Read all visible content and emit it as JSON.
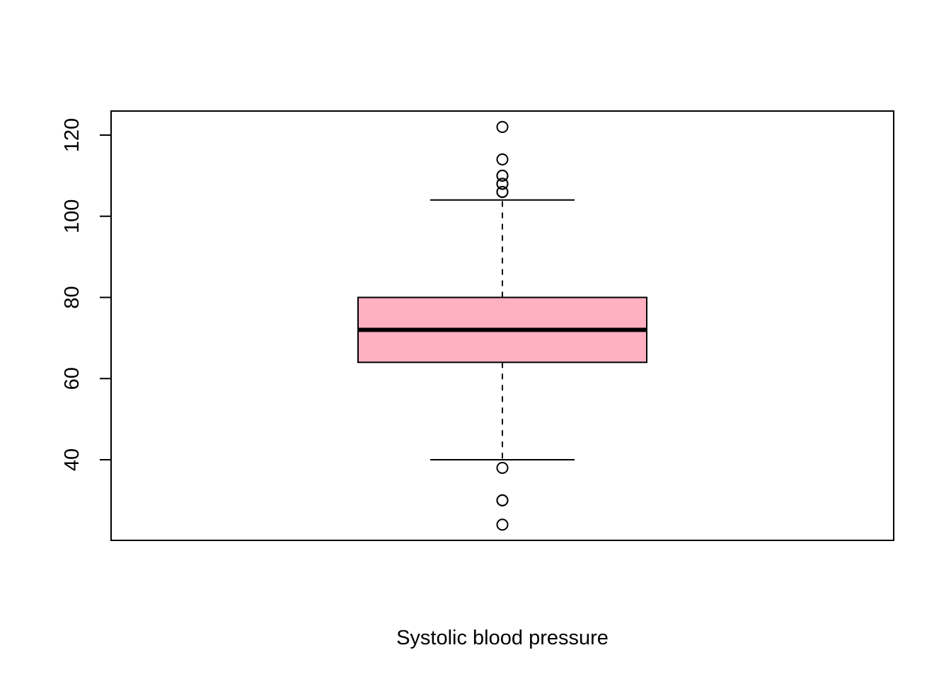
{
  "chart_data": {
    "type": "boxplot",
    "title": "",
    "xlabel": "Systolic blood pressure",
    "ylabel": "",
    "ylim": [
      20,
      126
    ],
    "yticks": [
      40,
      60,
      80,
      100,
      120
    ],
    "box": {
      "lower_whisker": 40,
      "q1": 64,
      "median": 72,
      "q3": 80,
      "upper_whisker": 104,
      "outliers": [
        24,
        30,
        30,
        38,
        106,
        106,
        108,
        108,
        110,
        110,
        114,
        122
      ]
    },
    "grid": false,
    "colors": {
      "box_fill": "#FFB0C1",
      "stroke": "#000000"
    }
  }
}
